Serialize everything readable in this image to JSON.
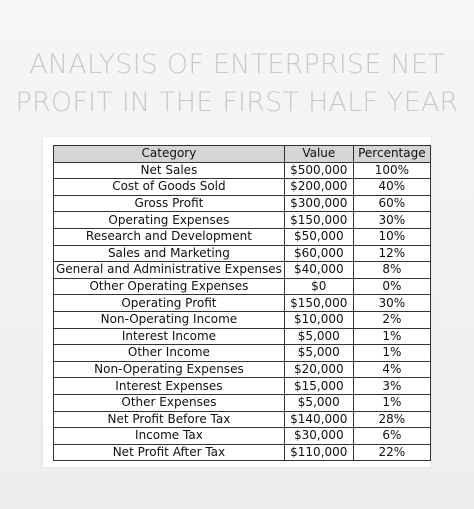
{
  "title": {
    "line1": "ANALYSIS OF ENTERPRISE NET",
    "line2": "PROFIT IN THE FIRST HALF YEAR"
  },
  "table": {
    "headers": [
      "Category",
      "Value",
      "Percentage"
    ],
    "rows": [
      [
        "Net Sales",
        "$500,000",
        "100%"
      ],
      [
        "Cost of Goods Sold",
        "$200,000",
        "40%"
      ],
      [
        "Gross Profit",
        "$300,000",
        "60%"
      ],
      [
        "Operating Expenses",
        "$150,000",
        "30%"
      ],
      [
        "Research and Development",
        "$50,000",
        "10%"
      ],
      [
        "Sales and Marketing",
        "$60,000",
        "12%"
      ],
      [
        "General and Administrative Expenses",
        "$40,000",
        "8%"
      ],
      [
        "Other Operating Expenses",
        "$0",
        "0%"
      ],
      [
        "Operating Profit",
        "$150,000",
        "30%"
      ],
      [
        "Non-Operating Income",
        "$10,000",
        "2%"
      ],
      [
        "Interest Income",
        "$5,000",
        "1%"
      ],
      [
        "Other Income",
        "$5,000",
        "1%"
      ],
      [
        "Non-Operating Expenses",
        "$20,000",
        "4%"
      ],
      [
        "Interest Expenses",
        "$15,000",
        "3%"
      ],
      [
        "Other Expenses",
        "$5,000",
        "1%"
      ],
      [
        "Net Profit Before Tax",
        "$140,000",
        "28%"
      ],
      [
        "Income Tax",
        "$30,000",
        "6%"
      ],
      [
        "Net Profit After Tax",
        "$110,000",
        "22%"
      ]
    ]
  }
}
